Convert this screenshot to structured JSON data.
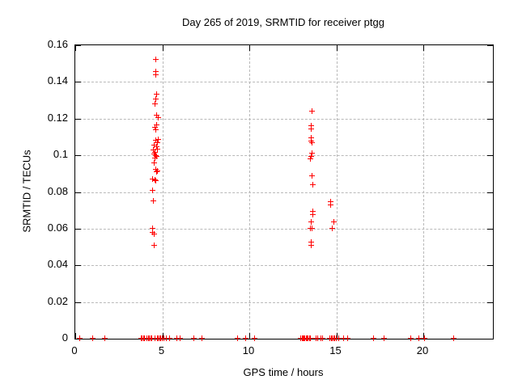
{
  "chart_data": {
    "type": "scatter",
    "title": "Day 265 of 2019, SRMTID for receiver ptgg",
    "xlabel": "GPS time / hours",
    "ylabel": "SRMTID / TECUs",
    "xlim": [
      0,
      24
    ],
    "ylim": [
      0,
      0.16
    ],
    "xticks": [
      0,
      5,
      10,
      15,
      20
    ],
    "yticks": [
      0,
      0.02,
      0.04,
      0.06,
      0.08,
      0.1,
      0.12,
      0.14,
      0.16
    ],
    "grid": true,
    "legend": false,
    "marker": "plus",
    "marker_color": "#ff0000",
    "series_name": "SRMTID",
    "points": [
      [
        4.65,
        0.152
      ],
      [
        4.64,
        0.1455
      ],
      [
        4.64,
        0.1435
      ],
      [
        4.7,
        0.133
      ],
      [
        4.64,
        0.1305
      ],
      [
        4.6,
        0.128
      ],
      [
        4.72,
        0.1215
      ],
      [
        4.77,
        0.1205
      ],
      [
        4.7,
        0.1165
      ],
      [
        4.62,
        0.1152
      ],
      [
        4.67,
        0.1138
      ],
      [
        4.77,
        0.1085
      ],
      [
        4.64,
        0.1078
      ],
      [
        4.73,
        0.1068
      ],
      [
        4.57,
        0.1053
      ],
      [
        4.68,
        0.1043
      ],
      [
        4.76,
        0.1033
      ],
      [
        4.53,
        0.1025
      ],
      [
        4.6,
        0.1012
      ],
      [
        4.55,
        0.1005
      ],
      [
        4.67,
        0.0998
      ],
      [
        4.72,
        0.099
      ],
      [
        4.6,
        0.0983
      ],
      [
        4.58,
        0.0958
      ],
      [
        4.67,
        0.092
      ],
      [
        4.74,
        0.0913
      ],
      [
        4.7,
        0.0907
      ],
      [
        4.47,
        0.087
      ],
      [
        4.59,
        0.0862
      ],
      [
        4.66,
        0.0858
      ],
      [
        4.47,
        0.0807
      ],
      [
        4.5,
        0.0748
      ],
      [
        4.47,
        0.0601
      ],
      [
        4.47,
        0.0576
      ],
      [
        4.58,
        0.0568
      ],
      [
        4.55,
        0.0508
      ],
      [
        13.61,
        0.124
      ],
      [
        13.57,
        0.116
      ],
      [
        13.57,
        0.1142
      ],
      [
        13.57,
        0.1094
      ],
      [
        13.57,
        0.1077
      ],
      [
        13.61,
        0.1068
      ],
      [
        13.61,
        0.1009
      ],
      [
        13.57,
        0.0992
      ],
      [
        13.53,
        0.098
      ],
      [
        13.61,
        0.0884
      ],
      [
        13.66,
        0.0837
      ],
      [
        14.7,
        0.0745
      ],
      [
        14.7,
        0.0727
      ],
      [
        13.68,
        0.0693
      ],
      [
        13.68,
        0.0676
      ],
      [
        13.57,
        0.0636
      ],
      [
        14.88,
        0.0636
      ],
      [
        13.53,
        0.0601
      ],
      [
        13.62,
        0.0598
      ],
      [
        14.81,
        0.0598
      ],
      [
        13.59,
        0.0526
      ],
      [
        13.59,
        0.0508
      ],
      [
        0.3,
        0
      ],
      [
        1.04,
        0
      ],
      [
        1.74,
        0
      ],
      [
        3.81,
        0
      ],
      [
        3.88,
        0
      ],
      [
        3.95,
        0
      ],
      [
        4.02,
        0
      ],
      [
        4.13,
        0
      ],
      [
        4.23,
        0
      ],
      [
        4.3,
        0
      ],
      [
        4.37,
        0
      ],
      [
        4.44,
        0
      ],
      [
        4.59,
        0
      ],
      [
        4.74,
        0
      ],
      [
        4.81,
        0
      ],
      [
        4.88,
        0
      ],
      [
        4.95,
        0
      ],
      [
        5.01,
        0
      ],
      [
        5.12,
        0
      ],
      [
        5.27,
        0
      ],
      [
        5.44,
        0
      ],
      [
        5.87,
        0
      ],
      [
        6.06,
        0
      ],
      [
        6.86,
        0
      ],
      [
        7.32,
        0
      ],
      [
        9.33,
        0
      ],
      [
        9.8,
        0
      ],
      [
        10.34,
        0
      ],
      [
        12.99,
        0
      ],
      [
        13.05,
        0
      ],
      [
        13.11,
        0
      ],
      [
        13.17,
        0
      ],
      [
        13.23,
        0
      ],
      [
        13.29,
        0
      ],
      [
        13.35,
        0
      ],
      [
        13.41,
        0
      ],
      [
        13.47,
        0
      ],
      [
        13.53,
        0
      ],
      [
        13.88,
        0
      ],
      [
        13.97,
        0
      ],
      [
        14.15,
        0
      ],
      [
        14.23,
        0
      ],
      [
        14.66,
        0
      ],
      [
        14.73,
        0
      ],
      [
        14.8,
        0
      ],
      [
        14.87,
        0
      ],
      [
        14.94,
        0
      ],
      [
        15.0,
        0
      ],
      [
        15.18,
        0
      ],
      [
        15.43,
        0
      ],
      [
        15.69,
        0
      ],
      [
        17.16,
        0
      ],
      [
        17.79,
        0
      ],
      [
        19.3,
        0
      ],
      [
        19.77,
        0
      ],
      [
        20.11,
        0
      ],
      [
        21.78,
        0
      ]
    ]
  }
}
